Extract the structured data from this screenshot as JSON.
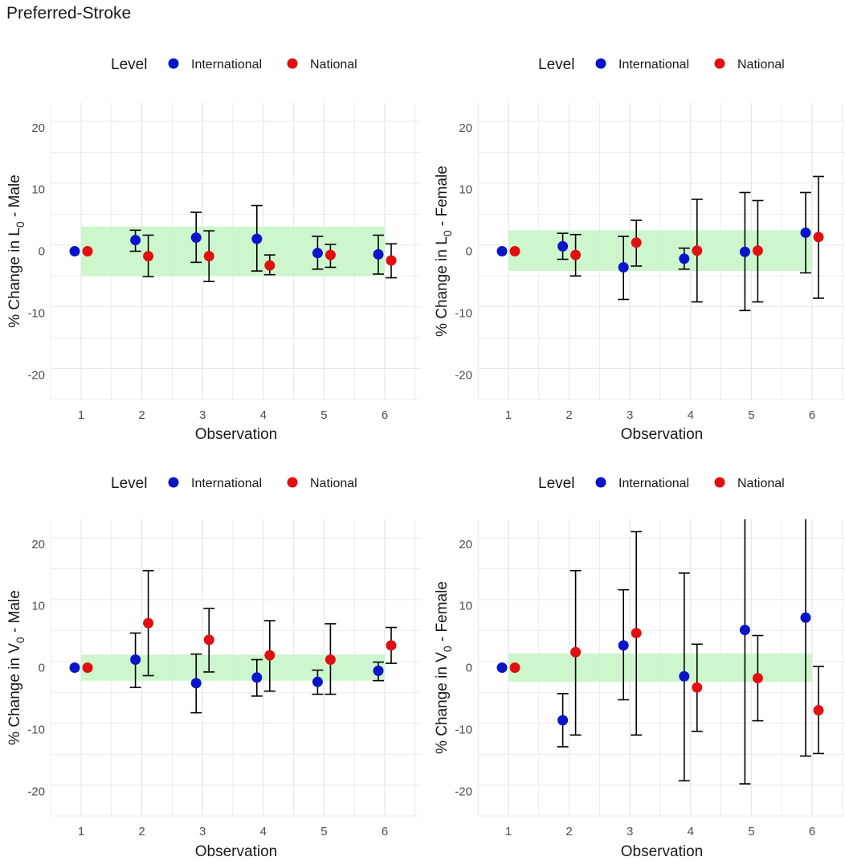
{
  "figure_title": "Preferred-Stroke",
  "colors": {
    "International": "#0a14c8",
    "National": "#e01010",
    "band": "#c8f5c8",
    "grid": "#e6e6e6",
    "errorbar": "#000000",
    "tick_text": "#4d4d4d"
  },
  "chart_data": [
    {
      "type": "scatter",
      "title": "",
      "legend_title": "Level",
      "legend_entries": [
        "International",
        "National"
      ],
      "legend_position": "top",
      "xlabel": "Observation",
      "ylabel": {
        "prefix": "% Change in ",
        "var": "L",
        "sub": "0",
        "suffix": " - Male"
      },
      "categories": [
        "1",
        "2",
        "3",
        "4",
        "5",
        "6"
      ],
      "ylim": [
        -24,
        24
      ],
      "yticks": [
        -20,
        -10,
        0,
        10,
        20
      ],
      "band": [
        -4,
        4
      ],
      "series": [
        {
          "name": "International",
          "values": [
            0,
            1.8,
            2.2,
            2.0,
            -0.3,
            -0.5
          ],
          "lower": [
            0,
            0,
            -1.8,
            -3.2,
            -2.9,
            -3.7
          ],
          "upper": [
            0,
            3.4,
            6.3,
            7.4,
            2.4,
            2.6
          ]
        },
        {
          "name": "National",
          "values": [
            0,
            -0.8,
            -0.8,
            -2.3,
            -0.6,
            -1.5
          ],
          "lower": [
            0,
            -4.1,
            -4.9,
            -3.8,
            -2.6,
            -4.3
          ],
          "upper": [
            0,
            2.6,
            3.3,
            -0.6,
            1.1,
            1.2
          ]
        }
      ]
    },
    {
      "type": "scatter",
      "title": "",
      "legend_title": "Level",
      "legend_entries": [
        "International",
        "National"
      ],
      "legend_position": "top",
      "xlabel": "Observation",
      "ylabel": {
        "prefix": "% Change in ",
        "var": "L",
        "sub": "0",
        "suffix": " - Female"
      },
      "categories": [
        "1",
        "2",
        "3",
        "4",
        "5",
        "6"
      ],
      "ylim": [
        -24,
        24
      ],
      "yticks": [
        -20,
        -10,
        0,
        10,
        20
      ],
      "band": [
        -3.2,
        3.4
      ],
      "series": [
        {
          "name": "International",
          "values": [
            0,
            0.8,
            -2.6,
            -1.2,
            -0.1,
            3.0
          ],
          "lower": [
            0,
            -1.3,
            -7.8,
            -2.9,
            -9.6,
            -3.5
          ],
          "upper": [
            0,
            2.9,
            2.4,
            0.5,
            9.5,
            9.5
          ]
        },
        {
          "name": "National",
          "values": [
            0,
            -0.6,
            1.4,
            0.1,
            0.1,
            2.3
          ],
          "lower": [
            0,
            -4.0,
            -2.4,
            -8.2,
            -8.2,
            -7.6
          ],
          "upper": [
            0,
            2.7,
            5.0,
            8.4,
            8.2,
            12.1
          ]
        }
      ]
    },
    {
      "type": "scatter",
      "title": "",
      "legend_title": "Level",
      "legend_entries": [
        "International",
        "National"
      ],
      "legend_position": "top",
      "xlabel": "Observation",
      "ylabel": {
        "prefix": "% Change in ",
        "var": "V",
        "sub": "0",
        "suffix": " - Male"
      },
      "categories": [
        "1",
        "2",
        "3",
        "4",
        "5",
        "6"
      ],
      "ylim": [
        -24,
        24
      ],
      "yticks": [
        -20,
        -10,
        0,
        10,
        20
      ],
      "band": [
        -2.1,
        2.1
      ],
      "series": [
        {
          "name": "International",
          "values": [
            0,
            1.3,
            -2.5,
            -1.6,
            -2.3,
            -0.5
          ],
          "lower": [
            0,
            -3.2,
            -7.3,
            -4.6,
            -4.3,
            -2.1
          ],
          "upper": [
            0,
            5.6,
            2.2,
            1.3,
            -0.4,
            0.9
          ]
        },
        {
          "name": "National",
          "values": [
            0,
            7.2,
            4.5,
            2.0,
            1.3,
            3.6
          ],
          "lower": [
            0,
            -1.3,
            -0.7,
            -3.8,
            -4.3,
            0.7
          ],
          "upper": [
            0,
            15.7,
            9.6,
            7.6,
            7.1,
            6.5
          ]
        }
      ]
    },
    {
      "type": "scatter",
      "title": "",
      "legend_title": "Level",
      "legend_entries": [
        "International",
        "National"
      ],
      "legend_position": "top",
      "xlabel": "Observation",
      "ylabel": {
        "prefix": "% Change in ",
        "var": "V",
        "sub": "0",
        "suffix": " - Female"
      },
      "categories": [
        "1",
        "2",
        "3",
        "4",
        "5",
        "6"
      ],
      "ylim": [
        -24,
        24
      ],
      "yticks": [
        -20,
        -10,
        0,
        10,
        20
      ],
      "band": [
        -2.3,
        2.3
      ],
      "series": [
        {
          "name": "International",
          "values": [
            0,
            -8.5,
            3.6,
            -1.4,
            6.1,
            8.1
          ],
          "lower": [
            0,
            -12.8,
            -5.2,
            -18.3,
            -18.8,
            -14.3
          ],
          "upper": [
            0,
            -4.2,
            12.6,
            15.3,
            24.5,
            24.5
          ]
        },
        {
          "name": "National",
          "values": [
            0,
            2.5,
            5.6,
            -3.2,
            -1.7,
            -6.9
          ],
          "lower": [
            0,
            -10.9,
            -10.9,
            -10.3,
            -8.6,
            -13.9
          ],
          "upper": [
            0,
            15.7,
            22.0,
            3.8,
            5.2,
            0.2
          ]
        }
      ]
    }
  ]
}
